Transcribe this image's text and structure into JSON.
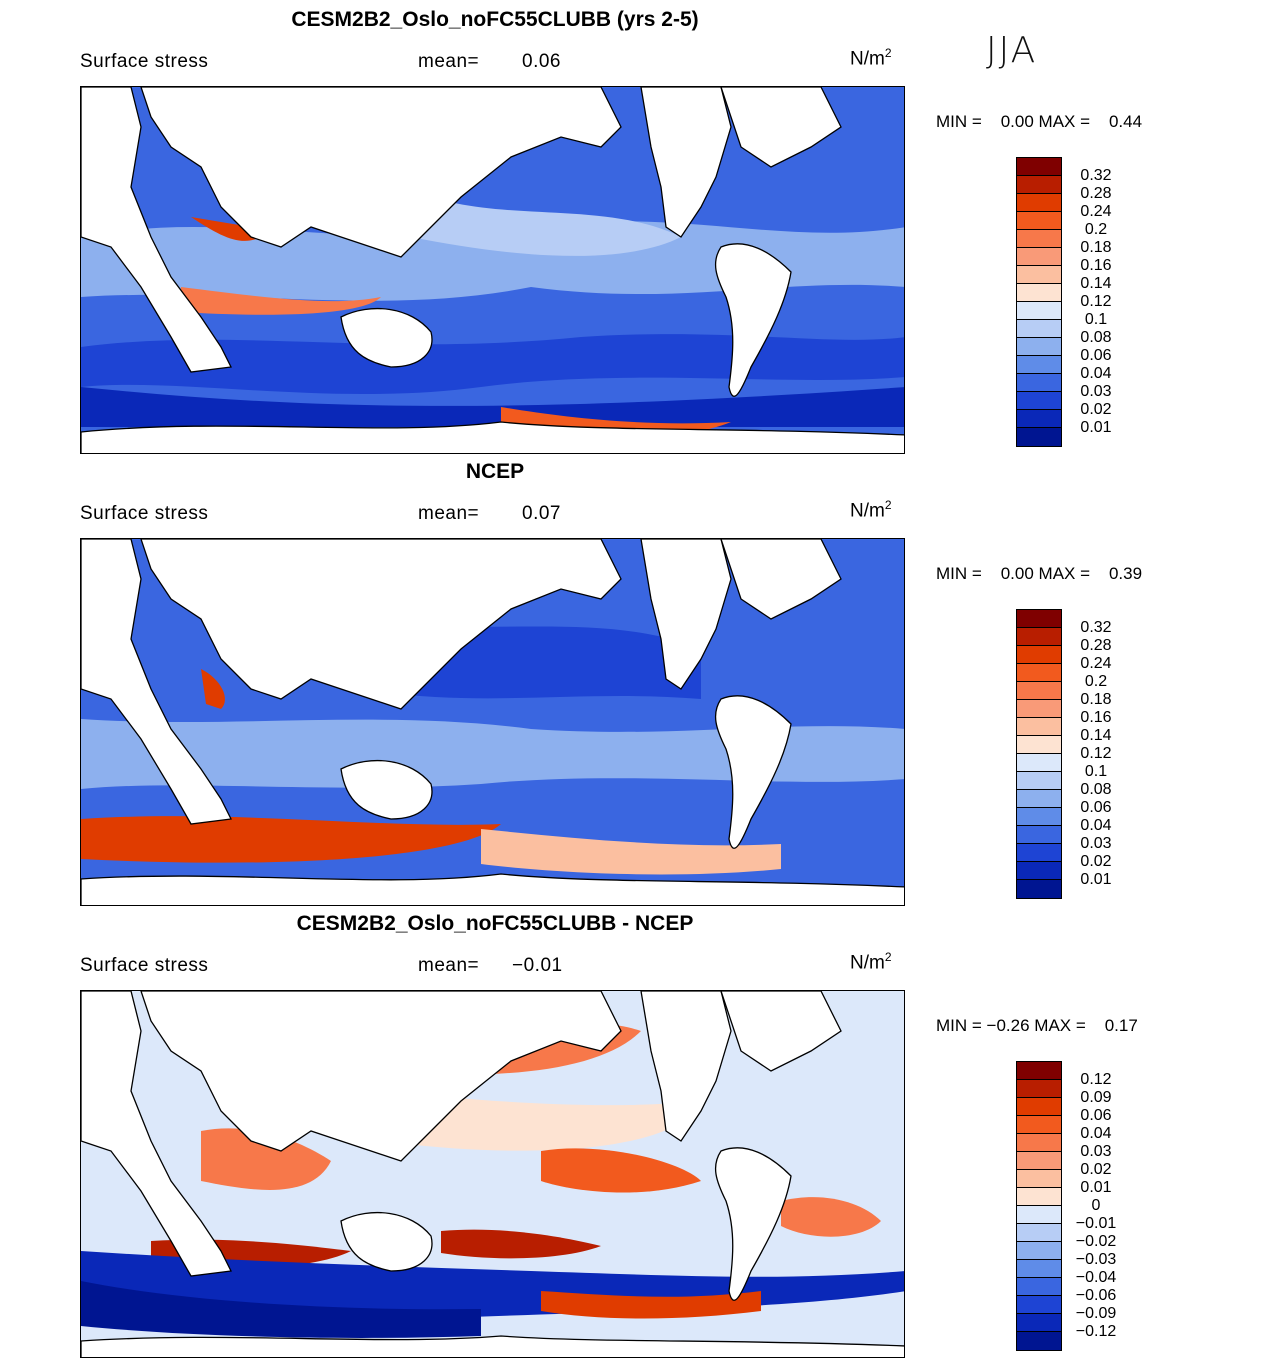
{
  "season": "JJA",
  "panels": [
    {
      "title": "CESM2B2_Oslo_noFC55CLUBB (yrs 2-5)",
      "variable": "Surface stress",
      "mean_label": "mean=",
      "mean_value": "0.06",
      "units": "N/m",
      "units_exp": "2",
      "min_label": "MIN =",
      "min_value": "0.00",
      "max_label": "MAX =",
      "max_value": "0.44",
      "colorbar_labels": [
        "0.32",
        "0.28",
        "0.24",
        "0.2",
        "0.18",
        "0.16",
        "0.14",
        "0.12",
        "0.1",
        "0.08",
        "0.06",
        "0.04",
        "0.03",
        "0.02",
        "0.01"
      ]
    },
    {
      "title": "NCEP",
      "variable": "Surface stress",
      "mean_label": "mean=",
      "mean_value": "0.07",
      "units": "N/m",
      "units_exp": "2",
      "min_label": "MIN =",
      "min_value": "0.00",
      "max_label": "MAX =",
      "max_value": "0.39",
      "colorbar_labels": [
        "0.32",
        "0.28",
        "0.24",
        "0.2",
        "0.18",
        "0.16",
        "0.14",
        "0.12",
        "0.1",
        "0.08",
        "0.06",
        "0.04",
        "0.03",
        "0.02",
        "0.01"
      ]
    },
    {
      "title": "CESM2B2_Oslo_noFC55CLUBB - NCEP",
      "variable": "Surface stress",
      "mean_label": "mean=",
      "mean_value": "−0.01",
      "units": "N/m",
      "units_exp": "2",
      "min_label": "MIN =",
      "min_value": "−0.26",
      "max_label": "MAX =",
      "max_value": "0.17",
      "colorbar_labels": [
        "0.12",
        "0.09",
        "0.06",
        "0.04",
        "0.03",
        "0.02",
        "0.01",
        "0",
        "−0.01",
        "−0.02",
        "−0.03",
        "−0.04",
        "−0.06",
        "−0.09",
        "−0.12"
      ]
    }
  ],
  "colors": {
    "colorbar": [
      "#7f0000",
      "#b81e00",
      "#e03c00",
      "#f25a1e",
      "#f7784a",
      "#f99a78",
      "#fbbfa0",
      "#fde3d2",
      "#dce8fa",
      "#b7cdf5",
      "#8db0ee",
      "#5f8ce8",
      "#3a66e0",
      "#1e44d4",
      "#0a28b8",
      "#001591"
    ]
  }
}
